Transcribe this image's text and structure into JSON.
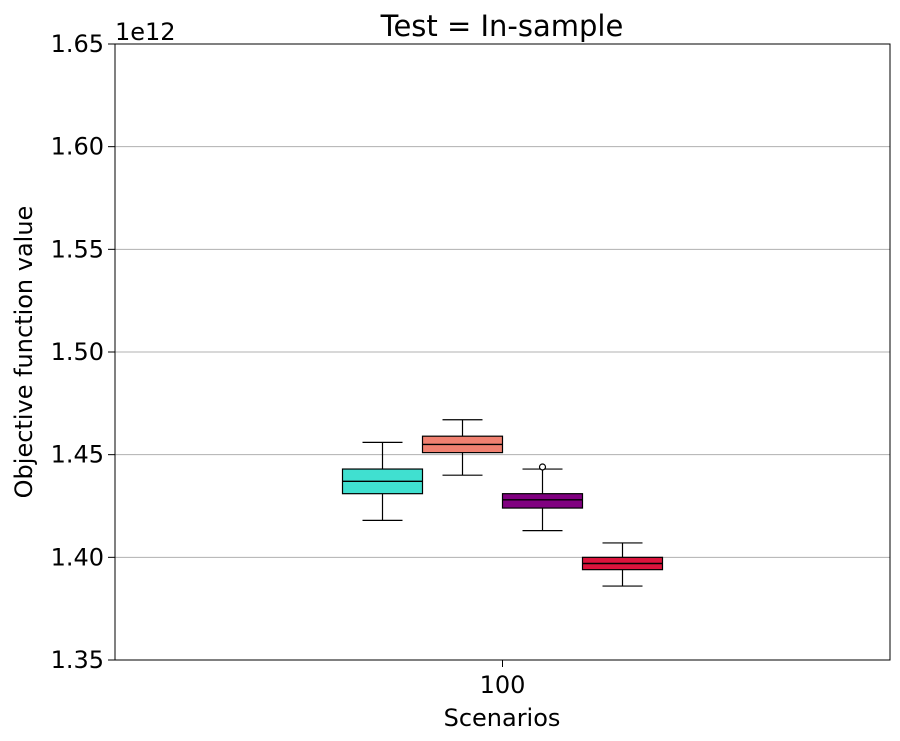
{
  "chart_data": {
    "type": "box",
    "title": "Test = In-sample",
    "xlabel": "Scenarios",
    "ylabel": "Objective function value",
    "y_offset_label": "1e12",
    "categories": [
      "100"
    ],
    "ylim": [
      1.35,
      1.65
    ],
    "yticks": [
      1.35,
      1.4,
      1.45,
      1.5,
      1.55,
      1.6,
      1.65
    ],
    "ytick_labels": [
      "1.35",
      "1.40",
      "1.45",
      "1.50",
      "1.55",
      "1.60",
      "1.65"
    ],
    "grid": "horizontal",
    "series": [
      {
        "color": "#40e0d0",
        "whisker_low": 1.418,
        "q1": 1.431,
        "median": 1.437,
        "q3": 1.443,
        "whisker_high": 1.456,
        "outliers": []
      },
      {
        "color": "#f08070",
        "whisker_low": 1.44,
        "q1": 1.451,
        "median": 1.455,
        "q3": 1.459,
        "whisker_high": 1.467,
        "outliers": []
      },
      {
        "color": "#800080",
        "whisker_low": 1.413,
        "q1": 1.424,
        "median": 1.428,
        "q3": 1.431,
        "whisker_high": 1.443,
        "outliers": [
          1.444
        ]
      },
      {
        "color": "#dc143c",
        "whisker_low": 1.386,
        "q1": 1.394,
        "median": 1.397,
        "q3": 1.4,
        "whisker_high": 1.407,
        "outliers": []
      }
    ]
  }
}
